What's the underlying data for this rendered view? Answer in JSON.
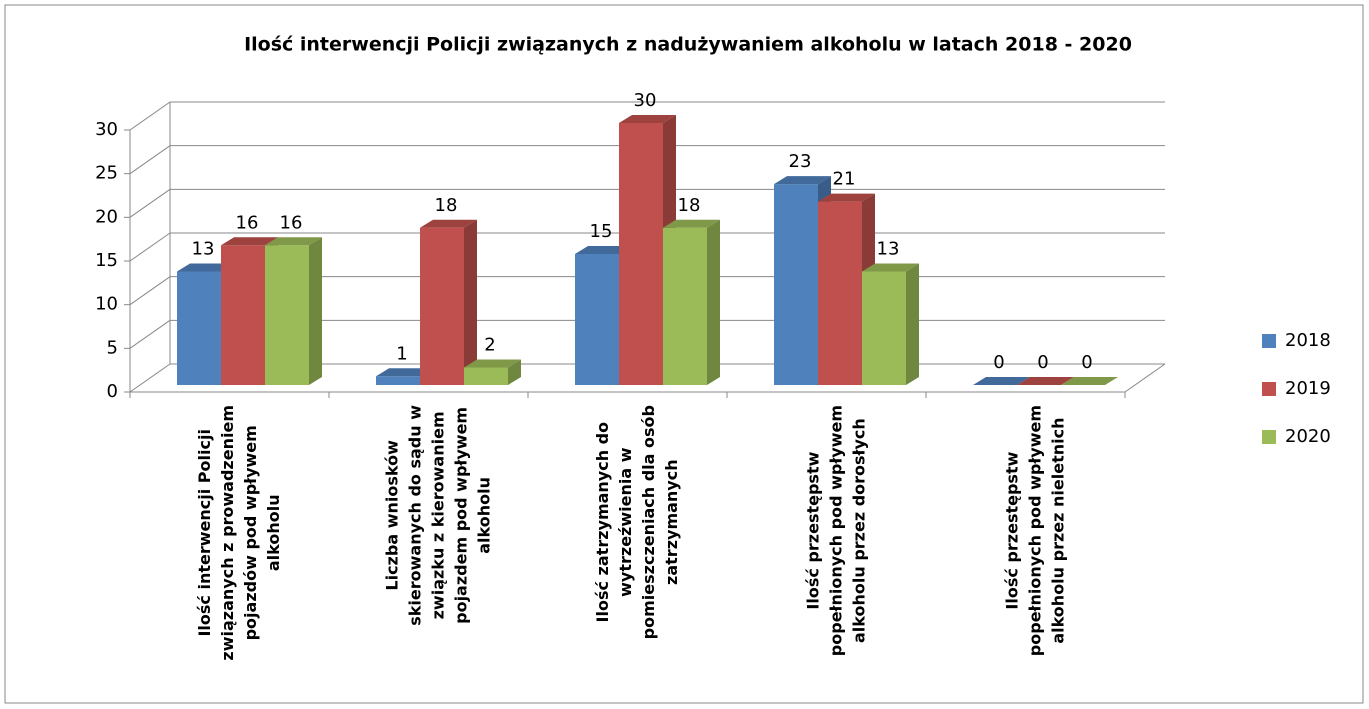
{
  "chart_data": {
    "type": "bar3d",
    "title": "Ilość interwencji Policji związanych z nadużywaniem alkoholu w latach 2018 - 2020",
    "categories": [
      "Ilość interwencji Policji związanych z prowadzeniem pojazdów pod wpływem alkoholu",
      "Liczba wniosków skierowanych do sądu w związku z kierowaniem pojazdem pod wpływem alkoholu",
      "Ilość zatrzymanych do wytrzeźwienia w pomieszczeniach dla osób zatrzymanych",
      "Ilość przestępstw popełnionych pod wpływem alkoholu przez dorosłych",
      "Ilość przestępstw popełnionych pod wpływem alkoholu przez nieletnich"
    ],
    "series": [
      {
        "name": "2018",
        "color": "#4f81bd",
        "values": [
          13,
          1,
          15,
          23,
          0
        ]
      },
      {
        "name": "2019",
        "color": "#c0504d",
        "values": [
          16,
          18,
          30,
          21,
          0
        ]
      },
      {
        "name": "2020",
        "color": "#9bbb59",
        "values": [
          16,
          2,
          18,
          13,
          0
        ]
      }
    ],
    "ylim": [
      0,
      30
    ],
    "yticks": [
      0,
      5,
      10,
      15,
      20,
      25,
      30
    ],
    "grid": true,
    "legend": "right"
  }
}
